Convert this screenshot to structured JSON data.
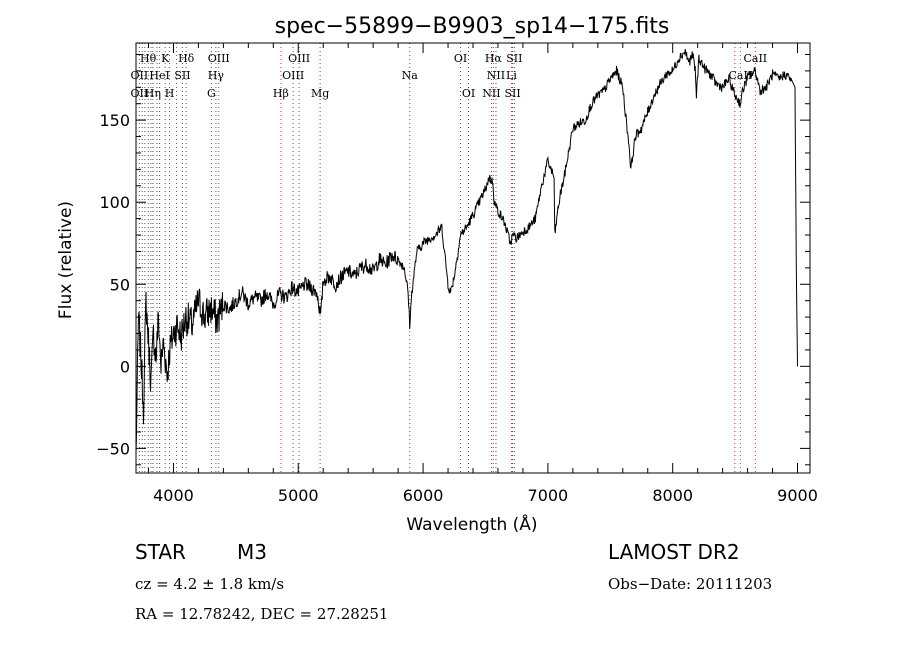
{
  "chart_data": {
    "type": "line",
    "title": "spec−55899−B9903_sp14−175.fits",
    "xlabel": "Wavelength (Å)",
    "ylabel": "Flux (relative)",
    "xlim": [
      3700,
      9100
    ],
    "ylim": [
      -65,
      197
    ],
    "xticks": [
      4000,
      5000,
      6000,
      7000,
      8000,
      9000
    ],
    "yticks": [
      -50,
      0,
      50,
      100,
      150
    ],
    "grid": false,
    "series": [
      {
        "x": [
          3700,
          3720,
          3740,
          3760,
          3780,
          3800,
          3820,
          3840,
          3860,
          3880,
          3900,
          3920,
          3950,
          3970,
          4000,
          4030,
          4060,
          4100,
          4150,
          4200,
          4250,
          4300,
          4350,
          4400,
          4450,
          4500,
          4550,
          4600,
          4650,
          4700,
          4750,
          4800,
          4850,
          4900,
          4950,
          5000,
          5050,
          5100,
          5150,
          5180,
          5200,
          5250,
          5300,
          5350,
          5400,
          5450,
          5500,
          5550,
          5600,
          5650,
          5700,
          5750,
          5800,
          5850,
          5880,
          5893,
          5910,
          5950,
          6000,
          6050,
          6100,
          6150,
          6200,
          6220,
          6250,
          6280,
          6300,
          6350,
          6400,
          6450,
          6500,
          6530,
          6560,
          6570,
          6600,
          6650,
          6700,
          6720,
          6750,
          6800,
          6850,
          6900,
          6950,
          7000,
          7050,
          7055,
          7080,
          7100,
          7130,
          7160,
          7200,
          7250,
          7300,
          7350,
          7400,
          7450,
          7500,
          7550,
          7600,
          7620,
          7650,
          7665,
          7700,
          7750,
          7800,
          7850,
          7900,
          7950,
          8000,
          8050,
          8100,
          8130,
          8160,
          8180,
          8190,
          8210,
          8250,
          8300,
          8350,
          8400,
          8450,
          8500,
          8542,
          8560,
          8600,
          8662,
          8700,
          8750,
          8800,
          8850,
          8900,
          8950,
          8980,
          8990,
          9000
        ],
        "y": [
          -55,
          30,
          5,
          -25,
          40,
          15,
          -10,
          20,
          5,
          30,
          0,
          15,
          -5,
          10,
          20,
          25,
          18,
          30,
          25,
          40,
          30,
          35,
          28,
          38,
          35,
          40,
          45,
          38,
          42,
          40,
          45,
          38,
          44,
          42,
          48,
          45,
          50,
          48,
          45,
          30,
          52,
          55,
          50,
          55,
          58,
          55,
          60,
          62,
          58,
          65,
          62,
          68,
          65,
          60,
          45,
          25,
          45,
          70,
          75,
          78,
          80,
          85,
          50,
          45,
          55,
          70,
          80,
          85,
          92,
          100,
          108,
          115,
          112,
          100,
          95,
          88,
          75,
          80,
          78,
          82,
          85,
          90,
          110,
          125,
          115,
          80,
          95,
          105,
          115,
          128,
          145,
          148,
          150,
          160,
          165,
          168,
          175,
          180,
          170,
          155,
          135,
          120,
          140,
          145,
          155,
          165,
          172,
          178,
          180,
          188,
          192,
          185,
          190,
          180,
          165,
          188,
          182,
          178,
          172,
          170,
          175,
          165,
          160,
          168,
          176,
          180,
          168,
          170,
          178,
          175,
          178,
          175,
          170,
          60,
          0
        ]
      }
    ],
    "lines": [
      {
        "x": 3727,
        "color": "#555555"
      },
      {
        "x": 3750,
        "color": "#555555"
      },
      {
        "x": 3771,
        "color": "#555555"
      },
      {
        "x": 3798,
        "color": "#555555"
      },
      {
        "x": 3820,
        "color": "#555555"
      },
      {
        "x": 3835,
        "color": "#555555"
      },
      {
        "x": 3869,
        "color": "#555555"
      },
      {
        "x": 3889,
        "color": "#555555"
      },
      {
        "x": 3934,
        "color": "#555555"
      },
      {
        "x": 3969,
        "color": "#555555"
      },
      {
        "x": 4026,
        "color": "#555555"
      },
      {
        "x": 4072,
        "color": "#555555"
      },
      {
        "x": 4102,
        "color": "#555555"
      },
      {
        "x": 4304,
        "color": "#555555"
      },
      {
        "x": 4340,
        "color": "#555555"
      },
      {
        "x": 4363,
        "color": "#555555"
      },
      {
        "x": 4861,
        "color": "#cc3333"
      },
      {
        "x": 4959,
        "color": "#555555"
      },
      {
        "x": 5007,
        "color": "#555555"
      },
      {
        "x": 5175,
        "color": "#cc3333"
      },
      {
        "x": 5893,
        "color": "#cc3333"
      },
      {
        "x": 6300,
        "color": "#555555"
      },
      {
        "x": 6364,
        "color": "#555555"
      },
      {
        "x": 6548,
        "color": "#555555"
      },
      {
        "x": 6563,
        "color": "#cc3333"
      },
      {
        "x": 6584,
        "color": "#555555"
      },
      {
        "x": 6708,
        "color": "#cc3333"
      },
      {
        "x": 6717,
        "color": "#555555"
      },
      {
        "x": 6731,
        "color": "#555555"
      },
      {
        "x": 8498,
        "color": "#cc3333"
      },
      {
        "x": 8542,
        "color": "#cc3333"
      },
      {
        "x": 8662,
        "color": "#cc3333"
      }
    ],
    "annotations": [
      {
        "text": "Hθ",
        "x": 3797,
        "row": 1
      },
      {
        "text": "K",
        "x": 3934,
        "row": 1
      },
      {
        "text": "Hδ",
        "x": 4102,
        "row": 1
      },
      {
        "text": "OIII",
        "x": 4363,
        "row": 1
      },
      {
        "text": "OIII",
        "x": 5007,
        "row": 1
      },
      {
        "text": "OI",
        "x": 6300,
        "row": 1
      },
      {
        "text": "Hα",
        "x": 6563,
        "row": 1
      },
      {
        "text": "SII",
        "x": 6731,
        "row": 1
      },
      {
        "text": "CaII",
        "x": 8662,
        "row": 1
      },
      {
        "text": "OII",
        "x": 3727,
        "row": 2
      },
      {
        "text": "HeI",
        "x": 3889,
        "row": 2
      },
      {
        "text": "SII",
        "x": 4072,
        "row": 2
      },
      {
        "text": "Hγ",
        "x": 4340,
        "row": 2
      },
      {
        "text": "OIII",
        "x": 4959,
        "row": 2
      },
      {
        "text": "Na",
        "x": 5893,
        "row": 2
      },
      {
        "text": "NII",
        "x": 6584,
        "row": 2
      },
      {
        "text": "Li",
        "x": 6708,
        "row": 2
      },
      {
        "text": "CaII",
        "x": 8542,
        "row": 2
      },
      {
        "text": "OII",
        "x": 3727,
        "row": 3
      },
      {
        "text": "Hη",
        "x": 3835,
        "row": 3
      },
      {
        "text": "H",
        "x": 3969,
        "row": 3
      },
      {
        "text": "G",
        "x": 4304,
        "row": 3
      },
      {
        "text": "Hβ",
        "x": 4861,
        "row": 3
      },
      {
        "text": "Mg",
        "x": 5175,
        "row": 3
      },
      {
        "text": "OI",
        "x": 6364,
        "row": 3
      },
      {
        "text": "NII",
        "x": 6548,
        "row": 3
      },
      {
        "text": "SII",
        "x": 6717,
        "row": 3
      }
    ]
  },
  "info": {
    "object_class": "STAR",
    "subclass": "M3",
    "survey": "LAMOST DR2",
    "cz": "cz = 4.2 ± 1.8 km/s",
    "obs_date": "Obs−Date: 20111203",
    "coords": "RA =  12.78242, DEC =  27.28251"
  }
}
